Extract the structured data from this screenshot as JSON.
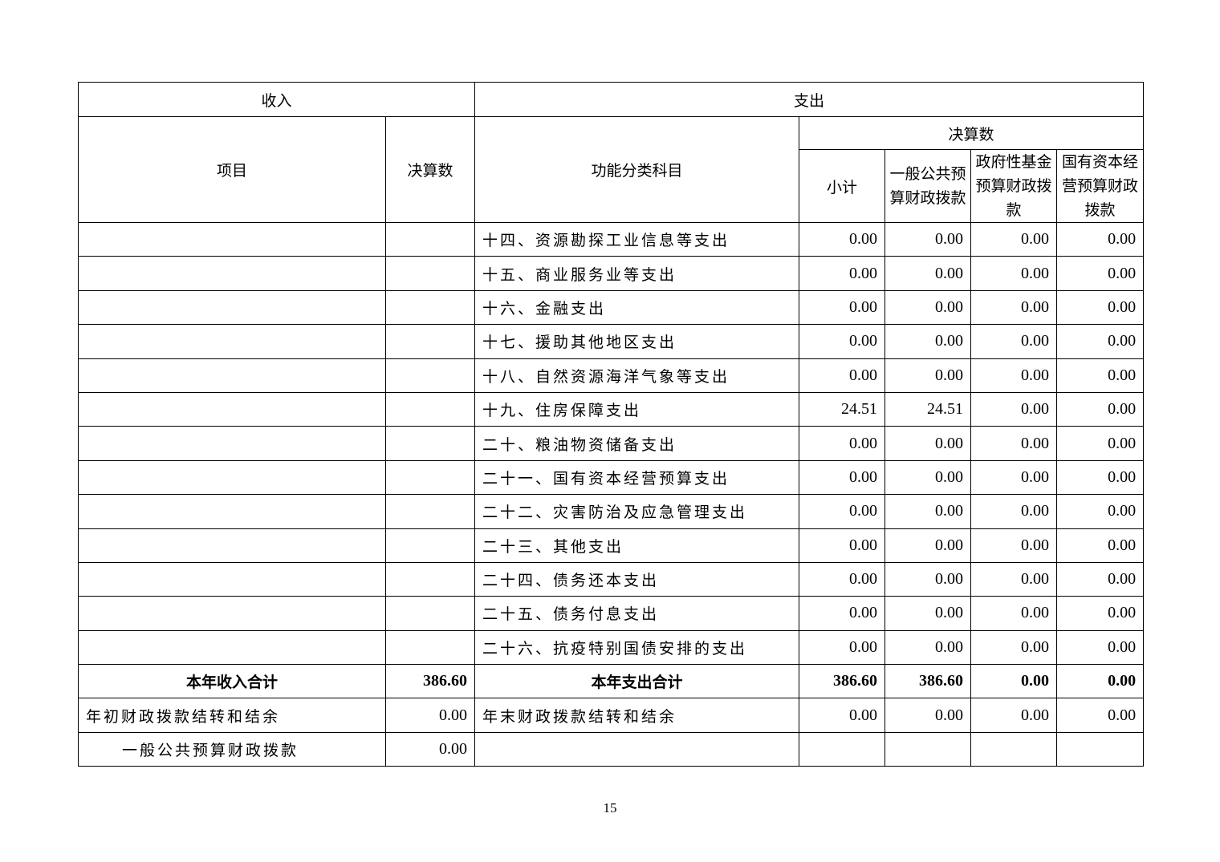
{
  "header": {
    "income": "收入",
    "expense": "支出",
    "item": "项目",
    "final_amount": "决算数",
    "category": "功能分类科目",
    "final_amount_group": "决算数",
    "subtotal": "小计",
    "general_public": "一般公共预算财政拨款",
    "gov_fund": "政府性基金预算财政拨款",
    "state_capital": "国有资本经营预算财政拨款"
  },
  "rows": [
    {
      "income_item": "",
      "income_amount": "",
      "category": "十四、资源勘探工业信息等支出",
      "v": [
        "0.00",
        "0.00",
        "0.00",
        "0.00"
      ]
    },
    {
      "income_item": "",
      "income_amount": "",
      "category": "十五、商业服务业等支出",
      "v": [
        "0.00",
        "0.00",
        "0.00",
        "0.00"
      ]
    },
    {
      "income_item": "",
      "income_amount": "",
      "category": "十六、金融支出",
      "v": [
        "0.00",
        "0.00",
        "0.00",
        "0.00"
      ]
    },
    {
      "income_item": "",
      "income_amount": "",
      "category": "十七、援助其他地区支出",
      "v": [
        "0.00",
        "0.00",
        "0.00",
        "0.00"
      ]
    },
    {
      "income_item": "",
      "income_amount": "",
      "category": "十八、自然资源海洋气象等支出",
      "v": [
        "0.00",
        "0.00",
        "0.00",
        "0.00"
      ]
    },
    {
      "income_item": "",
      "income_amount": "",
      "category": "十九、住房保障支出",
      "v": [
        "24.51",
        "24.51",
        "0.00",
        "0.00"
      ]
    },
    {
      "income_item": "",
      "income_amount": "",
      "category": "二十、粮油物资储备支出",
      "v": [
        "0.00",
        "0.00",
        "0.00",
        "0.00"
      ]
    },
    {
      "income_item": "",
      "income_amount": "",
      "category": "二十一、国有资本经营预算支出",
      "v": [
        "0.00",
        "0.00",
        "0.00",
        "0.00"
      ]
    },
    {
      "income_item": "",
      "income_amount": "",
      "category": "二十二、灾害防治及应急管理支出",
      "v": [
        "0.00",
        "0.00",
        "0.00",
        "0.00"
      ]
    },
    {
      "income_item": "",
      "income_amount": "",
      "category": "二十三、其他支出",
      "v": [
        "0.00",
        "0.00",
        "0.00",
        "0.00"
      ]
    },
    {
      "income_item": "",
      "income_amount": "",
      "category": "二十四、债务还本支出",
      "v": [
        "0.00",
        "0.00",
        "0.00",
        "0.00"
      ]
    },
    {
      "income_item": "",
      "income_amount": "",
      "category": "二十五、债务付息支出",
      "v": [
        "0.00",
        "0.00",
        "0.00",
        "0.00"
      ]
    },
    {
      "income_item": "",
      "income_amount": "",
      "category": "二十六、抗疫特别国债安排的支出",
      "v": [
        "0.00",
        "0.00",
        "0.00",
        "0.00"
      ]
    },
    {
      "income_item": "本年收入合计",
      "income_amount": "386.60",
      "category": "本年支出合计",
      "v": [
        "386.60",
        "386.60",
        "0.00",
        "0.00"
      ],
      "total": true
    },
    {
      "income_item": "年初财政拨款结转和结余",
      "income_amount": "0.00",
      "category": "年末财政拨款结转和结余",
      "v": [
        "0.00",
        "0.00",
        "0.00",
        "0.00"
      ]
    },
    {
      "income_item": "一般公共预算财政拨款",
      "income_amount": "0.00",
      "category": "",
      "v": [
        "",
        "",
        "",
        ""
      ],
      "indent": true
    }
  ],
  "page_number": "15"
}
